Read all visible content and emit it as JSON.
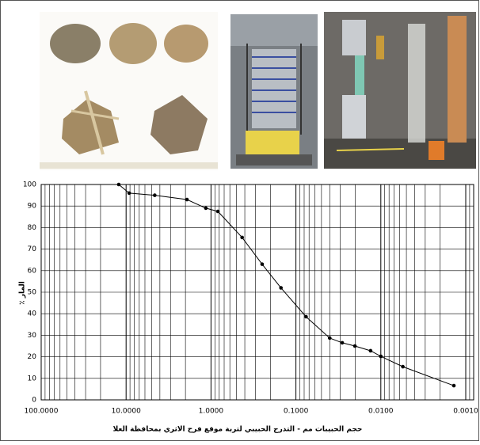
{
  "chart_data": {
    "type": "line",
    "xlabel": "حجم الحبيبات مم - التدرج الحبيبي لتربة موقع فرح الاثري بمحافظة العلا",
    "ylabel": "٪ المار",
    "log_x": true,
    "x_reversed": true,
    "grid": true,
    "color": "#000000",
    "xlim": [
      100,
      0.001
    ],
    "ylim": [
      0,
      100
    ],
    "xticks": [
      {
        "value": 100,
        "label": "100.0000"
      },
      {
        "value": 10,
        "label": "10.0000"
      },
      {
        "value": 1,
        "label": "1.0000"
      },
      {
        "value": 0.1,
        "label": "0.1000"
      },
      {
        "value": 0.01,
        "label": "0.0100"
      },
      {
        "value": 0.001,
        "label": "0.0010"
      }
    ],
    "yticks": [
      0,
      10,
      20,
      30,
      40,
      50,
      60,
      70,
      80,
      90,
      100
    ],
    "x": [
      12.2,
      9.2,
      4.6,
      1.92,
      1.15,
      0.83,
      0.43,
      0.25,
      0.15,
      0.076,
      0.04,
      0.0285,
      0.0202,
      0.0132,
      0.01,
      0.0055,
      0.00138
    ],
    "values": [
      100,
      96,
      95,
      93,
      89,
      87.5,
      75.4,
      63,
      52,
      38.6,
      28.7,
      26.5,
      25,
      22.8,
      20.2,
      15.4,
      6.6
    ]
  }
}
